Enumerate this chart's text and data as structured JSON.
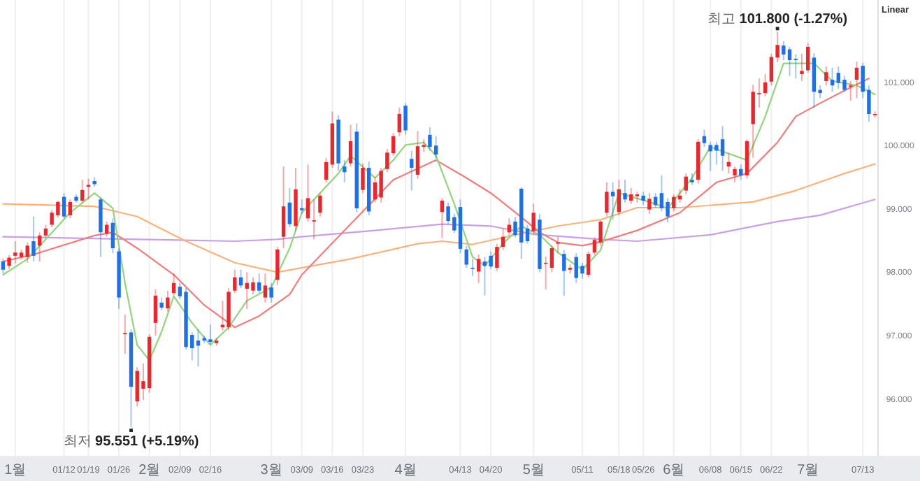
{
  "chart_data": {
    "type": "candlestick",
    "ylim": [
      95.1,
      102.3
    ],
    "yticks": [
      {
        "value": 96,
        "label": "96.000"
      },
      {
        "value": 97,
        "label": "97.000"
      },
      {
        "value": 98,
        "label": "98.000"
      },
      {
        "value": 99,
        "label": "99.000"
      },
      {
        "value": 100,
        "label": "100.000"
      },
      {
        "value": 101,
        "label": "101.000"
      }
    ],
    "grid": "x",
    "categories": [
      null,
      null,
      "1월",
      null,
      null,
      null,
      null,
      null,
      null,
      null,
      "01/12",
      null,
      null,
      null,
      "01/19",
      null,
      null,
      null,
      null,
      "01/26",
      null,
      null,
      null,
      null,
      "2월",
      null,
      null,
      null,
      null,
      "02/09",
      null,
      null,
      null,
      null,
      "02/16",
      null,
      null,
      null,
      null,
      null,
      null,
      null,
      null,
      null,
      "3월",
      null,
      null,
      null,
      null,
      "03/09",
      null,
      null,
      null,
      null,
      "03/16",
      null,
      null,
      null,
      null,
      "03/23",
      null,
      null,
      null,
      null,
      null,
      null,
      "4월",
      null,
      null,
      null,
      null,
      null,
      null,
      null,
      null,
      "04/13",
      null,
      null,
      null,
      null,
      "04/20",
      null,
      null,
      null,
      null,
      null,
      null,
      "5월",
      null,
      null,
      null,
      null,
      null,
      null,
      null,
      "05/11",
      null,
      null,
      null,
      null,
      null,
      "05/18",
      null,
      null,
      null,
      "05/26",
      null,
      null,
      null,
      null,
      "6월",
      null,
      null,
      null,
      null,
      null,
      "06/08",
      null,
      null,
      null,
      null,
      "06/15",
      null,
      null,
      null,
      null,
      "06/22",
      null,
      null,
      null,
      null,
      null,
      "7월",
      null,
      null,
      null,
      null,
      null,
      null,
      null,
      null,
      "07/13",
      null,
      null
    ],
    "ohlc": [
      [
        98.17,
        98.22,
        97.98,
        98.04
      ],
      [
        98.1,
        98.27,
        98.05,
        98.23
      ],
      [
        98.26,
        98.49,
        98.14,
        98.31
      ],
      [
        98.24,
        98.36,
        98.2,
        98.31
      ],
      [
        98.24,
        98.47,
        98.15,
        98.42
      ],
      [
        98.49,
        98.88,
        98.17,
        98.26
      ],
      [
        98.42,
        98.63,
        98.17,
        98.58
      ],
      [
        98.58,
        98.75,
        98.55,
        98.69
      ],
      [
        98.75,
        98.98,
        98.71,
        98.94
      ],
      [
        98.9,
        99.13,
        98.86,
        99.11
      ],
      [
        99.19,
        99.25,
        98.85,
        98.88
      ],
      [
        98.9,
        99.15,
        98.85,
        99.11
      ],
      [
        99.19,
        99.23,
        99.1,
        99.13
      ],
      [
        99.13,
        99.46,
        99.1,
        99.3
      ],
      [
        99.35,
        99.48,
        99.15,
        99.38
      ],
      [
        99.44,
        99.5,
        99.35,
        99.39
      ],
      [
        99.15,
        99.18,
        98.24,
        98.63
      ],
      [
        98.61,
        98.8,
        98.56,
        98.75
      ],
      [
        98.78,
        98.85,
        98.3,
        98.38
      ],
      [
        98.33,
        98.38,
        97.42,
        97.6
      ],
      [
        97.02,
        97.33,
        96.71,
        97.04
      ],
      [
        97.05,
        97.1,
        95.551,
        96.19
      ],
      [
        95.96,
        96.5,
        95.88,
        96.44
      ],
      [
        96.16,
        96.56,
        95.98,
        96.28
      ],
      [
        96.17,
        97.02,
        96.1,
        96.98
      ],
      [
        97.2,
        97.73,
        97.0,
        97.63
      ],
      [
        97.52,
        97.6,
        97.4,
        97.44
      ],
      [
        97.43,
        97.71,
        97.38,
        97.6
      ],
      [
        97.67,
        97.98,
        97.63,
        97.83
      ],
      [
        97.77,
        97.83,
        97.58,
        97.62
      ],
      [
        97.69,
        97.75,
        96.78,
        96.82
      ],
      [
        97.01,
        97.05,
        96.61,
        96.8
      ],
      [
        96.92,
        97.1,
        96.51,
        96.84
      ],
      [
        96.96,
        97.0,
        96.88,
        96.92
      ],
      [
        96.94,
        97.17,
        96.86,
        96.9
      ],
      [
        96.88,
        96.96,
        96.84,
        96.92
      ],
      [
        97.13,
        97.55,
        97.08,
        97.17
      ],
      [
        97.13,
        97.75,
        97.08,
        97.69
      ],
      [
        97.71,
        98.04,
        97.67,
        97.92
      ],
      [
        97.92,
        98.04,
        97.75,
        97.79
      ],
      [
        97.74,
        98.0,
        97.42,
        97.83
      ],
      [
        97.71,
        97.92,
        97.65,
        97.84
      ],
      [
        97.84,
        97.98,
        97.67,
        97.71
      ],
      [
        97.6,
        97.98,
        97.52,
        97.79
      ],
      [
        97.76,
        97.83,
        97.52,
        97.6
      ],
      [
        97.88,
        98.4,
        97.8,
        98.36
      ],
      [
        98.56,
        99.67,
        98.38,
        99.04
      ],
      [
        99.1,
        99.33,
        98.71,
        98.76
      ],
      [
        98.73,
        99.65,
        98.65,
        99.31
      ],
      [
        99.01,
        99.15,
        98.92,
        98.98
      ],
      [
        98.85,
        99.7,
        98.8,
        99.17
      ],
      [
        98.8,
        99.15,
        98.52,
        98.82
      ],
      [
        98.94,
        99.25,
        98.88,
        99.21
      ],
      [
        99.46,
        99.8,
        99.42,
        99.74
      ],
      [
        99.7,
        100.54,
        99.65,
        100.35
      ],
      [
        100.41,
        100.48,
        99.6,
        99.72
      ],
      [
        99.67,
        99.77,
        99.42,
        99.58
      ],
      [
        99.72,
        100.33,
        99.67,
        100.07
      ],
      [
        100.22,
        100.35,
        98.95,
        99.01
      ],
      [
        99.3,
        99.72,
        99.25,
        99.65
      ],
      [
        99.65,
        99.75,
        98.9,
        98.96
      ],
      [
        99.15,
        99.5,
        99.1,
        99.42
      ],
      [
        99.18,
        99.65,
        99.1,
        99.6
      ],
      [
        99.63,
        99.95,
        99.58,
        99.89
      ],
      [
        99.88,
        100.2,
        99.84,
        100.15
      ],
      [
        100.21,
        100.6,
        100.15,
        100.5
      ],
      [
        100.63,
        100.67,
        100.17,
        100.24
      ],
      [
        99.79,
        99.92,
        99.29,
        99.65
      ],
      [
        99.54,
        100.23,
        99.48,
        99.99
      ],
      [
        99.98,
        100.1,
        99.9,
        100.01
      ],
      [
        100.17,
        100.29,
        99.92,
        99.98
      ],
      [
        100.0,
        100.15,
        99.8,
        99.86
      ],
      [
        98.95,
        99.17,
        98.54,
        99.13
      ],
      [
        99.04,
        99.1,
        98.76,
        98.81
      ],
      [
        98.87,
        98.92,
        98.62,
        98.66
      ],
      [
        99.03,
        99.15,
        98.3,
        98.37
      ],
      [
        98.36,
        98.42,
        98.07,
        98.12
      ],
      [
        98.07,
        98.21,
        97.94,
        98.06
      ],
      [
        98.01,
        98.28,
        97.83,
        98.21
      ],
      [
        98.17,
        98.24,
        97.63,
        98.1
      ],
      [
        98.26,
        98.33,
        98.05,
        98.09
      ],
      [
        98.07,
        98.45,
        98.02,
        98.4
      ],
      [
        98.4,
        98.69,
        98.35,
        98.56
      ],
      [
        98.63,
        98.85,
        98.58,
        98.75
      ],
      [
        98.8,
        98.87,
        98.55,
        98.59
      ],
      [
        99.32,
        99.34,
        98.21,
        98.47
      ],
      [
        98.69,
        98.75,
        98.45,
        98.49
      ],
      [
        98.65,
        99.08,
        98.6,
        98.94
      ],
      [
        98.83,
        98.92,
        98.0,
        98.05
      ],
      [
        98.14,
        98.25,
        97.73,
        98.15
      ],
      [
        98.07,
        98.42,
        98.0,
        98.38
      ],
      [
        98.45,
        98.56,
        98.31,
        98.47
      ],
      [
        98.29,
        98.35,
        97.63,
        98.02
      ],
      [
        98.04,
        98.12,
        97.98,
        98.07
      ],
      [
        98.24,
        98.3,
        97.83,
        97.91
      ],
      [
        98.1,
        98.15,
        97.9,
        97.98
      ],
      [
        97.96,
        98.33,
        97.92,
        98.29
      ],
      [
        98.31,
        98.55,
        98.27,
        98.51
      ],
      [
        98.47,
        98.82,
        98.42,
        98.8
      ],
      [
        98.94,
        99.42,
        98.88,
        99.27
      ],
      [
        99.27,
        99.42,
        98.83,
        99.2
      ],
      [
        98.95,
        99.46,
        98.9,
        99.31
      ],
      [
        99.25,
        99.46,
        99.1,
        99.15
      ],
      [
        99.13,
        99.33,
        99.08,
        99.23
      ],
      [
        99.2,
        99.27,
        99.1,
        99.23
      ],
      [
        99.21,
        99.27,
        99.06,
        99.13
      ],
      [
        98.99,
        99.25,
        98.92,
        99.16
      ],
      [
        99.19,
        99.25,
        99.02,
        99.06
      ],
      [
        99.25,
        99.53,
        98.96,
        99.01
      ],
      [
        99.11,
        99.17,
        98.79,
        98.88
      ],
      [
        99.01,
        99.23,
        98.96,
        99.19
      ],
      [
        99.15,
        99.31,
        99.1,
        99.21
      ],
      [
        99.29,
        99.56,
        99.23,
        99.51
      ],
      [
        99.46,
        99.56,
        99.38,
        99.42
      ],
      [
        99.46,
        100.1,
        99.4,
        100.06
      ],
      [
        100.15,
        100.25,
        99.98,
        100.04
      ],
      [
        100.01,
        100.06,
        99.6,
        99.91
      ],
      [
        100.01,
        100.06,
        99.7,
        99.92
      ],
      [
        100.1,
        100.31,
        99.6,
        99.84
      ],
      [
        99.67,
        99.88,
        99.56,
        99.74
      ],
      [
        99.53,
        99.67,
        99.42,
        99.63
      ],
      [
        99.63,
        99.7,
        99.46,
        99.53
      ],
      [
        99.53,
        100.1,
        99.48,
        100.07
      ],
      [
        100.34,
        100.96,
        99.81,
        100.85
      ],
      [
        100.81,
        101.06,
        100.6,
        100.83
      ],
      [
        100.83,
        101.13,
        100.78,
        101.0
      ],
      [
        101.01,
        101.45,
        100.95,
        101.4
      ],
      [
        101.39,
        101.8,
        101.32,
        101.59
      ],
      [
        101.58,
        101.65,
        101.35,
        101.44
      ],
      [
        101.52,
        101.56,
        101.1,
        101.35
      ],
      [
        101.37,
        101.44,
        101.06,
        101.35
      ],
      [
        101.13,
        101.45,
        101.02,
        101.18
      ],
      [
        101.19,
        101.62,
        101.15,
        101.56
      ],
      [
        101.39,
        101.46,
        100.6,
        100.85
      ],
      [
        100.88,
        100.95,
        100.75,
        100.83
      ],
      [
        101.02,
        101.25,
        100.95,
        101.16
      ],
      [
        101.04,
        101.23,
        100.85,
        100.95
      ],
      [
        101.15,
        101.25,
        100.9,
        100.99
      ],
      [
        101.04,
        101.1,
        100.85,
        100.88
      ],
      [
        100.93,
        101.02,
        100.71,
        100.95
      ],
      [
        101.04,
        101.33,
        100.75,
        101.23
      ],
      [
        101.26,
        101.31,
        100.75,
        100.85
      ],
      [
        100.88,
        100.95,
        100.38,
        100.5
      ],
      [
        100.48,
        100.54,
        100.44,
        100.5
      ]
    ],
    "colors": [
      "#1f6fe5",
      "#e8282e",
      "#e8282e",
      "#e8282e",
      "#e8282e",
      "#1f6fe5",
      "#e8282e",
      "#e8282e",
      "#e8282e",
      "#e8282e",
      "#1f6fe5",
      "#e8282e",
      "#1f6fe5",
      "#e8282e",
      "#e8282e",
      "#1f6fe5",
      "#1f6fe5",
      "#e8282e",
      "#1f6fe5",
      "#1f6fe5",
      "#e8282e",
      "#1f6fe5",
      "#e8282e",
      "#e8282e",
      "#e8282e",
      "#e8282e",
      "#1f6fe5",
      "#e8282e",
      "#e8282e",
      "#1f6fe5",
      "#1f6fe5",
      "#1f6fe5",
      "#1f6fe5",
      "#1f6fe5",
      "#1f6fe5",
      "#e8282e",
      "#e8282e",
      "#e8282e",
      "#e8282e",
      "#1f6fe5",
      "#e8282e",
      "#e8282e",
      "#1f6fe5",
      "#e8282e",
      "#1f6fe5",
      "#e8282e",
      "#e8282e",
      "#1f6fe5",
      "#e8282e",
      "#1f6fe5",
      "#e8282e",
      "#e8282e",
      "#e8282e",
      "#e8282e",
      "#e8282e",
      "#1f6fe5",
      "#1f6fe5",
      "#e8282e",
      "#1f6fe5",
      "#e8282e",
      "#1f6fe5",
      "#e8282e",
      "#e8282e",
      "#e8282e",
      "#e8282e",
      "#e8282e",
      "#1f6fe5",
      "#1f6fe5",
      "#e8282e",
      "#e8282e",
      "#1f6fe5",
      "#1f6fe5",
      "#e8282e",
      "#1f6fe5",
      "#1f6fe5",
      "#1f6fe5",
      "#1f6fe5",
      "#1f6fe5",
      "#e8282e",
      "#1f6fe5",
      "#1f6fe5",
      "#e8282e",
      "#e8282e",
      "#e8282e",
      "#1f6fe5",
      "#1f6fe5",
      "#1f6fe5",
      "#e8282e",
      "#1f6fe5",
      "#e8282e",
      "#e8282e",
      "#e8282e",
      "#1f6fe5",
      "#e8282e",
      "#1f6fe5",
      "#1f6fe5",
      "#e8282e",
      "#e8282e",
      "#e8282e",
      "#e8282e",
      "#1f6fe5",
      "#e8282e",
      "#1f6fe5",
      "#e8282e",
      "#e8282e",
      "#1f6fe5",
      "#e8282e",
      "#1f6fe5",
      "#1f6fe5",
      "#1f6fe5",
      "#e8282e",
      "#e8282e",
      "#e8282e",
      "#1f6fe5",
      "#e8282e",
      "#1f6fe5",
      "#1f6fe5",
      "#1f6fe5",
      "#1f6fe5",
      "#e8282e",
      "#e8282e",
      "#1f6fe5",
      "#e8282e",
      "#e8282e",
      "#e8282e",
      "#e8282e",
      "#e8282e",
      "#e8282e",
      "#1f6fe5",
      "#1f6fe5",
      "#1f6fe5",
      "#e8282e",
      "#e8282e",
      "#1f6fe5",
      "#1f6fe5",
      "#e8282e",
      "#1f6fe5",
      "#1f6fe5",
      "#1f6fe5",
      "#e8282e",
      "#e8282e",
      "#1f6fe5",
      "#1f6fe5",
      "#e8282e"
    ],
    "series": [
      {
        "type": "line",
        "color": "#c8a0e6",
        "values": [
          98.56,
          null,
          null,
          null,
          null,
          null,
          null,
          null,
          null,
          null,
          null,
          null,
          null,
          null,
          null,
          null,
          null,
          null,
          null,
          null,
          null,
          null,
          98.52,
          null,
          null,
          null,
          null,
          null,
          null,
          null,
          null,
          null,
          null,
          null,
          null,
          null,
          null,
          null,
          98.49,
          null,
          null,
          null,
          null,
          null,
          null,
          98.52,
          null,
          null,
          null,
          98.56,
          null,
          null,
          null,
          null,
          null,
          null,
          null,
          null,
          null,
          null,
          null,
          98.66,
          null,
          null,
          null,
          null,
          null,
          null,
          null,
          null,
          null,
          null,
          98.76,
          null,
          null,
          null,
          null,
          null,
          null,
          null,
          98.73,
          null,
          null,
          null,
          null,
          null,
          null,
          98.6,
          null,
          null,
          null,
          null,
          null,
          null,
          null,
          null,
          null,
          null,
          98.52,
          null,
          null,
          null,
          null,
          null,
          98.49,
          null,
          null,
          null,
          null,
          null,
          null,
          null,
          null,
          null,
          null,
          null,
          98.59,
          null,
          null,
          null,
          null,
          null,
          null,
          null,
          null,
          null,
          null,
          98.8,
          null,
          null,
          null,
          null,
          null,
          null,
          98.9,
          null,
          null,
          null,
          null,
          null,
          null,
          null,
          null,
          99.15
        ]
      },
      {
        "type": "line",
        "color": "#f9b27c",
        "values": [
          99.08,
          null,
          null,
          null,
          null,
          null,
          null,
          null,
          null,
          null,
          null,
          null,
          null,
          null,
          null,
          99.04,
          null,
          null,
          null,
          null,
          null,
          null,
          98.88,
          null,
          null,
          null,
          null,
          null,
          null,
          null,
          98.49,
          null,
          null,
          null,
          null,
          null,
          null,
          null,
          98.15,
          null,
          null,
          null,
          null,
          null,
          null,
          98.0,
          null,
          null,
          null,
          null,
          null,
          null,
          null,
          null,
          null,
          null,
          null,
          98.21,
          null,
          null,
          null,
          null,
          null,
          null,
          null,
          null,
          null,
          null,
          98.45,
          null,
          null,
          null,
          98.49,
          null,
          null,
          null,
          null,
          98.44,
          null,
          null,
          null,
          null,
          null,
          null,
          98.59,
          null,
          null,
          null,
          null,
          null,
          null,
          98.73,
          null,
          null,
          null,
          null,
          null,
          null,
          98.83,
          null,
          null,
          null,
          null,
          null,
          99.02,
          null,
          null,
          null,
          null,
          null,
          null,
          99.02,
          null,
          null,
          null,
          null,
          null,
          null,
          null,
          null,
          null,
          null,
          null,
          99.11,
          null,
          null,
          null,
          null,
          null,
          null,
          99.29,
          null,
          null,
          null,
          null,
          null,
          null,
          null,
          99.56,
          null,
          null,
          null,
          null,
          99.71
        ]
      },
      {
        "type": "line",
        "color": "#f27b7b",
        "values": [
          98.17,
          null,
          null,
          null,
          null,
          98.28,
          null,
          null,
          null,
          null,
          null,
          null,
          null,
          null,
          null,
          98.58,
          null,
          null,
          98.63,
          null,
          null,
          null,
          98.38,
          null,
          null,
          null,
          null,
          null,
          97.96,
          null,
          null,
          null,
          null,
          97.48,
          null,
          null,
          null,
          null,
          97.13,
          null,
          null,
          null,
          97.31,
          null,
          null,
          null,
          null,
          97.65,
          null,
          97.96,
          null,
          null,
          null,
          null,
          null,
          null,
          null,
          98.76,
          null,
          null,
          null,
          null,
          null,
          null,
          99.46,
          null,
          null,
          null,
          null,
          null,
          null,
          99.77,
          null,
          null,
          null,
          null,
          99.49,
          null,
          null,
          null,
          99.25,
          null,
          null,
          null,
          null,
          98.87,
          null,
          null,
          98.63,
          null,
          null,
          98.47,
          null,
          null,
          null,
          98.42,
          null,
          null,
          98.48,
          null,
          null,
          null,
          null,
          null,
          98.66,
          null,
          null,
          null,
          null,
          null,
          null,
          98.94,
          null,
          null,
          null,
          null,
          null,
          99.42,
          null,
          null,
          null,
          null,
          99.56,
          null,
          null,
          null,
          null,
          100.05,
          null,
          null,
          100.46,
          null,
          null,
          null,
          100.67,
          null,
          null,
          null,
          null,
          100.92,
          null,
          null,
          101.06,
          null
        ]
      },
      {
        "type": "line",
        "color": "#93d47e",
        "values": [
          97.96,
          null,
          null,
          null,
          98.21,
          null,
          null,
          98.52,
          null,
          null,
          null,
          98.94,
          null,
          null,
          null,
          99.25,
          null,
          null,
          99.01,
          null,
          97.83,
          null,
          96.85,
          null,
          96.61,
          null,
          97.06,
          null,
          97.62,
          null,
          null,
          97.2,
          null,
          null,
          96.85,
          null,
          null,
          97.13,
          null,
          null,
          97.55,
          null,
          null,
          null,
          97.76,
          null,
          null,
          98.38,
          null,
          98.94,
          null,
          99.15,
          null,
          null,
          null,
          99.56,
          null,
          99.84,
          null,
          null,
          null,
          99.49,
          null,
          null,
          99.77,
          null,
          100.01,
          null,
          null,
          100.05,
          null,
          99.84,
          null,
          null,
          99.08,
          null,
          null,
          98.24,
          null,
          98.1,
          null,
          null,
          98.45,
          null,
          null,
          98.73,
          null,
          null,
          98.59,
          null,
          null,
          98.31,
          null,
          null,
          null,
          98.04,
          null,
          null,
          98.35,
          null,
          null,
          99.25,
          null,
          null,
          null,
          null,
          99.11,
          null,
          null,
          99.01,
          null,
          null,
          null,
          99.49,
          null,
          null,
          99.98,
          null,
          99.91,
          null,
          null,
          null,
          99.77,
          null,
          null,
          100.46,
          null,
          null,
          101.3,
          null,
          null,
          null,
          null,
          101.3,
          null,
          null,
          101.02,
          null,
          null,
          null,
          100.95,
          null,
          null,
          100.81
        ]
      }
    ],
    "annotations": [
      {
        "text": "최고 **101.800 (-1.27%)**",
        "y": 101.8
      },
      {
        "text": "최저 **95.551 (+5.19%)**",
        "y": 95.551
      },
      "Linear"
    ]
  }
}
